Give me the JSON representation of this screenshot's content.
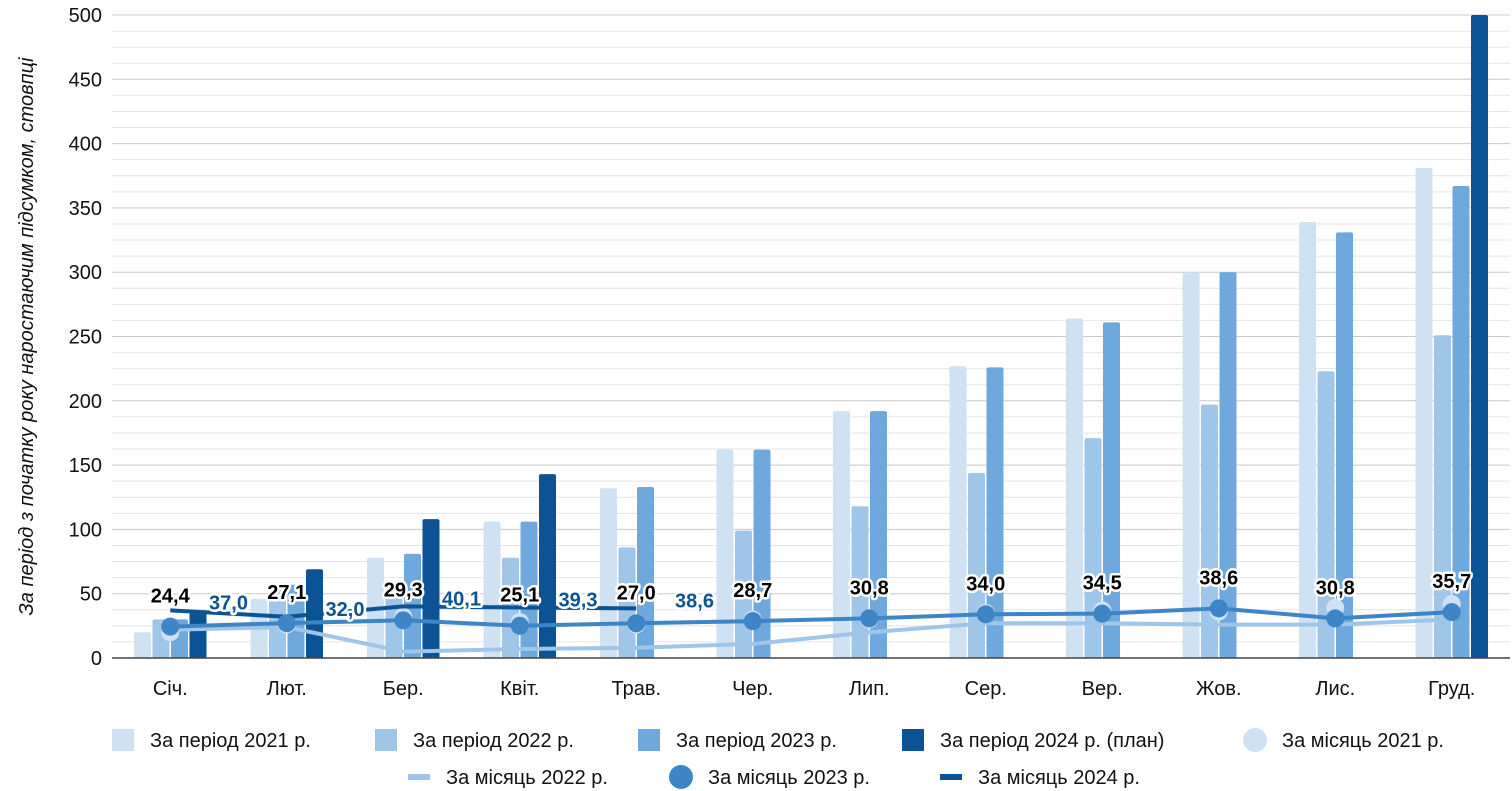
{
  "chart_data": {
    "type": "bar",
    "ylabel": "За період з початку року наростаючим підсумком, стовпці",
    "ylim": [
      0,
      500
    ],
    "yticks": [
      0,
      50,
      100,
      150,
      200,
      250,
      300,
      350,
      400,
      450,
      500
    ],
    "grid": true,
    "legend_position": "bottom",
    "categories": [
      "Січ.",
      "Лют.",
      "Бер.",
      "Квіт.",
      "Трав.",
      "Чер.",
      "Лип.",
      "Сер.",
      "Вер.",
      "Жов.",
      "Лис.",
      "Груд."
    ],
    "bar_series": [
      {
        "name": "За період 2021 р.",
        "color": "#cfe2f3",
        "values": [
          20,
          46,
          78,
          106,
          132,
          162,
          192,
          227,
          264,
          300,
          339,
          381
        ]
      },
      {
        "name": "За період 2022 р.",
        "color": "#9fc5e8",
        "values": [
          30,
          54,
          56,
          78,
          86,
          99,
          118,
          144,
          171,
          197,
          223,
          251
        ]
      },
      {
        "name": "За період 2023 р.",
        "color": "#6fa8dc",
        "values": [
          30,
          57,
          81,
          106,
          133,
          162,
          192,
          226,
          261,
          300,
          331,
          367
        ]
      },
      {
        "name": "За період 2024 р. (план)",
        "color": "#0b5394",
        "values": [
          37,
          69,
          108,
          143,
          null,
          null,
          null,
          null,
          null,
          null,
          null,
          500
        ]
      }
    ],
    "line_series": [
      {
        "name": "За місяць 2021 р.",
        "color": "#cfe2f3",
        "style": "marker",
        "values": [
          20,
          26,
          32,
          28,
          26,
          30,
          30,
          35,
          37,
          36,
          39,
          42
        ]
      },
      {
        "name": "За місяць 2022 р.",
        "color": "#9fc5e8",
        "style": "line",
        "values": [
          22,
          24,
          5,
          7,
          8,
          11,
          20,
          27,
          27,
          26,
          26,
          30
        ]
      },
      {
        "name": "За місяць 2023 р.",
        "color": "#3d85c6",
        "style": "line-marker",
        "values": [
          24.4,
          27.1,
          29.3,
          25.1,
          27.0,
          28.7,
          30.8,
          34.0,
          34.5,
          38.6,
          30.8,
          35.7
        ],
        "labels": [
          "24,4",
          "27,1",
          "29,3",
          "25,1",
          "27,0",
          "28,7",
          "30,8",
          "34,0",
          "34,5",
          "38,6",
          "30,8",
          "35,7"
        ]
      },
      {
        "name": "За місяць 2024 р.",
        "color": "#0b5394",
        "style": "line",
        "values": [
          37.0,
          32.0,
          40.1,
          39.3,
          38.6,
          null,
          null,
          null,
          null,
          null,
          null,
          null
        ],
        "labels": [
          "37,0",
          "32,0",
          "40,1",
          "39,3",
          "38,6"
        ]
      }
    ]
  }
}
